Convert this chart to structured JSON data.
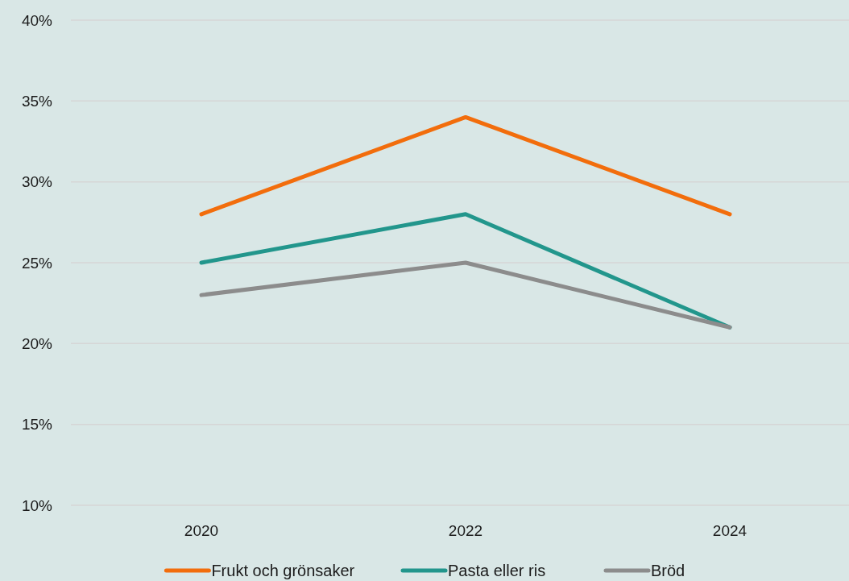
{
  "chart_data": {
    "type": "line",
    "categories": [
      "2020",
      "2022",
      "2024"
    ],
    "series": [
      {
        "name": "Frukt och grönsaker",
        "color": "#f26d0c",
        "values": [
          28,
          34,
          28
        ]
      },
      {
        "name": "Pasta eller ris",
        "color": "#22968c",
        "values": [
          25,
          28,
          21
        ]
      },
      {
        "name": "Bröd",
        "color": "#8c8c8c",
        "values": [
          23,
          25,
          21
        ]
      }
    ],
    "ylim": [
      10,
      40
    ],
    "yticks": [
      {
        "value": 10,
        "label": "10%"
      },
      {
        "value": 15,
        "label": "15%"
      },
      {
        "value": 20,
        "label": "20%"
      },
      {
        "value": 25,
        "label": "25%"
      },
      {
        "value": 30,
        "label": "30%"
      },
      {
        "value": 35,
        "label": "35%"
      },
      {
        "value": 40,
        "label": "40%"
      }
    ],
    "grid": "y",
    "legend": "bottom",
    "line_style": "solid"
  }
}
